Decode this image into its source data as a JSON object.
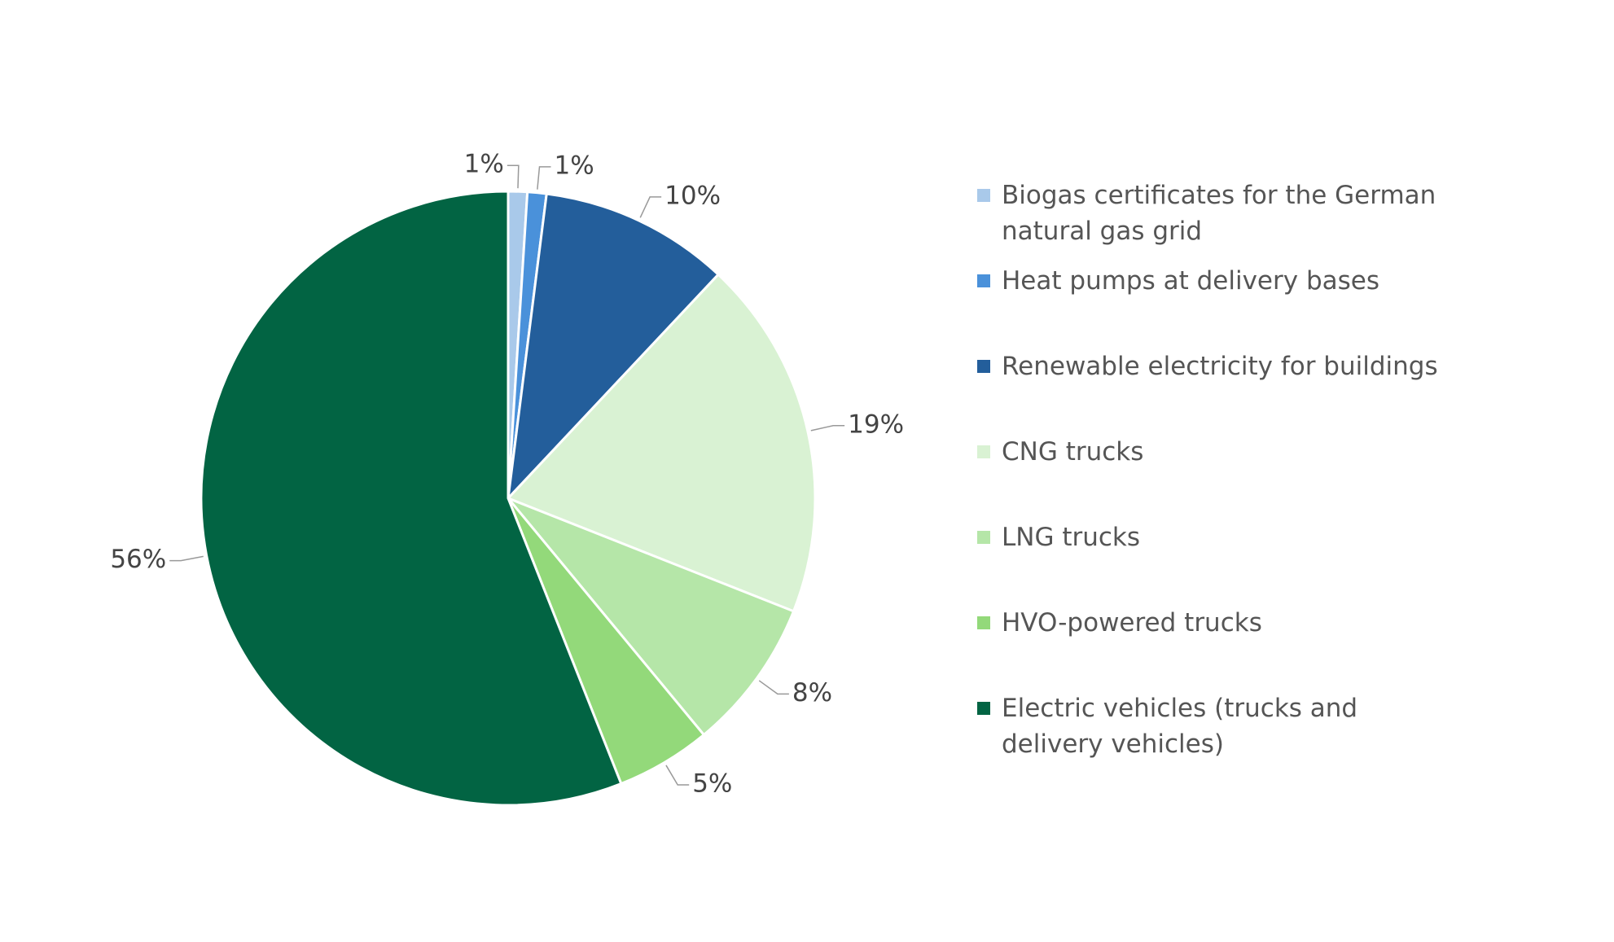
{
  "chart_data": {
    "type": "pie",
    "categories": [
      "Biogas certificates for the German natural gas grid",
      "Heat pumps at delivery bases",
      "Renewable electricity for buildings",
      "CNG trucks",
      "LNG trucks",
      "HVO-powered trucks",
      "Electric vehicles (trucks and delivery vehicles)"
    ],
    "values": [
      1,
      1,
      10,
      19,
      8,
      5,
      56
    ],
    "value_labels": [
      "1%",
      "1%",
      "10%",
      "19%",
      "8%",
      "5%",
      "56%"
    ],
    "colors": [
      "#a9c9ea",
      "#4a91da",
      "#235e9b",
      "#d9f2d3",
      "#b5e6a8",
      "#93d97a",
      "#026443"
    ],
    "legend": "right"
  }
}
